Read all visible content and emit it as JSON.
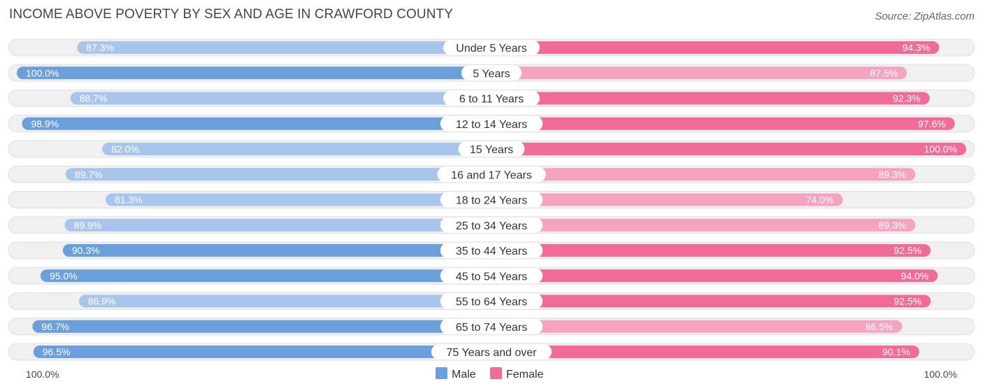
{
  "source": "Source: ZipAtlas.com",
  "colors": {
    "male_strong": "#6a9fdb",
    "male_light": "#a8c6ec",
    "female_strong": "#f06b98",
    "female_light": "#f5a3c0",
    "track": "#f0f0f0",
    "track_border": "#e0e0e0"
  },
  "chart_data": {
    "type": "bar",
    "title": "INCOME ABOVE POVERTY BY SEX AND AGE IN CRAWFORD COUNTY",
    "orientation": "horizontal-diverging",
    "categories": [
      "Under 5 Years",
      "5 Years",
      "6 to 11 Years",
      "12 to 14 Years",
      "15 Years",
      "16 and 17 Years",
      "18 to 24 Years",
      "25 to 34 Years",
      "35 to 44 Years",
      "45 to 54 Years",
      "55 to 64 Years",
      "65 to 74 Years",
      "75 Years and over"
    ],
    "series": [
      {
        "name": "Male",
        "values": [
          87.3,
          100.0,
          88.7,
          98.9,
          82.0,
          89.7,
          81.3,
          89.9,
          90.3,
          95.0,
          86.9,
          96.7,
          96.5
        ],
        "labels": [
          "87.3%",
          "100.0%",
          "88.7%",
          "98.9%",
          "82.0%",
          "89.7%",
          "81.3%",
          "89.9%",
          "90.3%",
          "95.0%",
          "86.9%",
          "96.7%",
          "96.5%"
        ]
      },
      {
        "name": "Female",
        "values": [
          94.3,
          87.5,
          92.3,
          97.6,
          100.0,
          89.3,
          74.0,
          89.3,
          92.5,
          94.0,
          92.5,
          86.5,
          90.1
        ],
        "labels": [
          "94.3%",
          "87.5%",
          "92.3%",
          "97.6%",
          "100.0%",
          "89.3%",
          "74.0%",
          "89.3%",
          "92.5%",
          "94.0%",
          "92.5%",
          "86.5%",
          "90.1%"
        ]
      }
    ],
    "xlim": [
      0,
      100
    ],
    "axis_left_label": "100.0%",
    "axis_right_label": "100.0%",
    "legend": [
      "Male",
      "Female"
    ],
    "legend_position": "bottom-center"
  }
}
